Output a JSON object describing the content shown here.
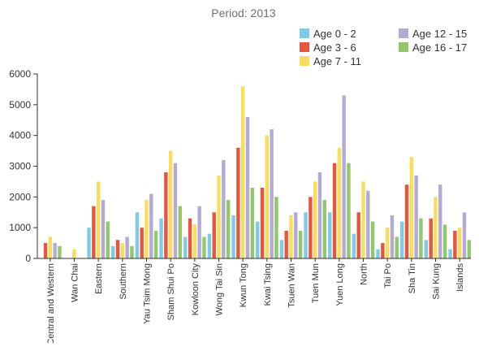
{
  "chart_data": {
    "type": "bar",
    "title": "Period: 2013",
    "xlabel": "",
    "ylabel": "",
    "ylim": [
      0,
      6000
    ],
    "yticks": [
      0,
      1000,
      2000,
      3000,
      4000,
      5000,
      6000
    ],
    "grid": false,
    "legend_position": "top-right",
    "categories": [
      "Central and Western",
      "Wan Chai",
      "Eastern",
      "Southern",
      "Yau Tsim Mong",
      "Sham Shui Po",
      "Kowloon City",
      "Wong Tai Sin",
      "Kwun Tong",
      "Kwai Tsing",
      "Tsuen Wan",
      "Tuen Mun",
      "Yuen Long",
      "North",
      "Tai Po",
      "Sha Tin",
      "Sai Kung",
      "Islands"
    ],
    "series": [
      {
        "name": "Age 0 - 2",
        "color": "#7ecbe8",
        "values": [
          0,
          0,
          1000,
          400,
          1500,
          1300,
          700,
          800,
          1400,
          1200,
          600,
          1500,
          1500,
          800,
          300,
          1200,
          600,
          300
        ]
      },
      {
        "name": "Age 3 - 6",
        "color": "#e8553a",
        "values": [
          500,
          0,
          1700,
          600,
          1000,
          2800,
          1300,
          1500,
          3600,
          2300,
          900,
          2000,
          3100,
          1500,
          500,
          2400,
          1300,
          900
        ]
      },
      {
        "name": "Age 7 - 11",
        "color": "#fbdd5a",
        "values": [
          700,
          300,
          2500,
          500,
          1900,
          3500,
          1100,
          2700,
          5600,
          4000,
          1400,
          2500,
          3600,
          2500,
          1000,
          3300,
          2000,
          1000
        ]
      },
      {
        "name": "Age 12 - 15",
        "color": "#b3aad6",
        "values": [
          500,
          0,
          1900,
          700,
          2100,
          3100,
          1700,
          3200,
          4600,
          4200,
          1500,
          2800,
          5300,
          2200,
          1400,
          2700,
          2400,
          1500
        ]
      },
      {
        "name": "Age 16 - 17",
        "color": "#92c86a",
        "values": [
          400,
          0,
          1200,
          400,
          900,
          1700,
          700,
          1900,
          2300,
          2000,
          900,
          1900,
          3100,
          1200,
          700,
          1300,
          1100,
          600
        ]
      }
    ]
  }
}
